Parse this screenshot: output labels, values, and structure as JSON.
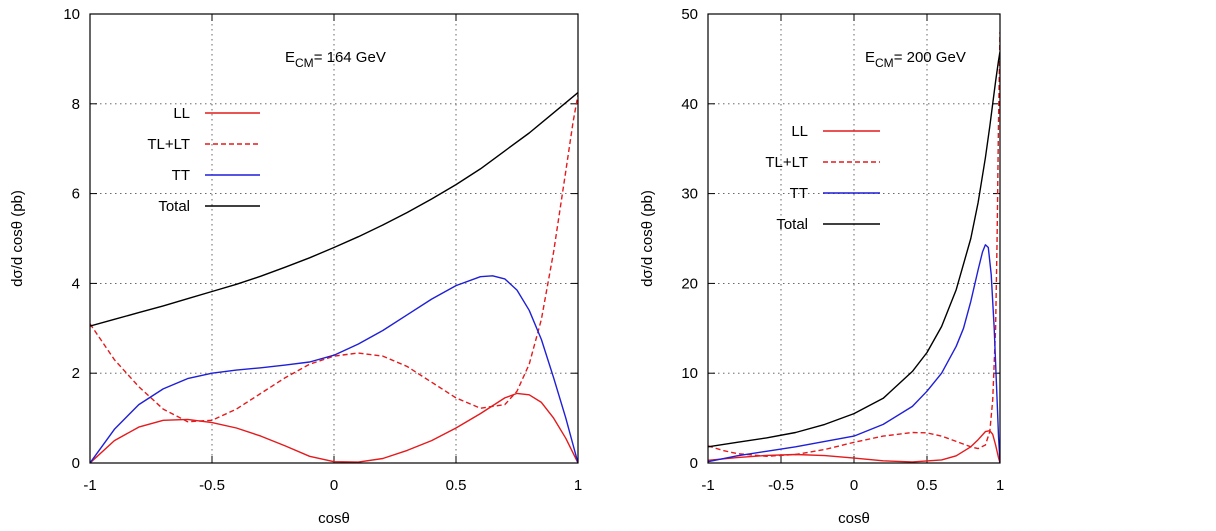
{
  "chart_data": [
    {
      "type": "line",
      "annotation": {
        "main": "E",
        "sub": "CM",
        "rest": "= 164 GeV"
      },
      "xlabel": "cosθ",
      "ylabel": "dσ/d cosθ (pb)",
      "xlim": [
        -1,
        1
      ],
      "ylim": [
        0,
        10
      ],
      "xticks": [
        -1,
        -0.5,
        0,
        0.5,
        1
      ],
      "xtick_labels": [
        "-1",
        "-0.5",
        "0",
        "0.5",
        "1"
      ],
      "yticks": [
        0,
        2,
        4,
        6,
        8,
        10
      ],
      "ytick_labels": [
        "0",
        "2",
        "4",
        "6",
        "8",
        "10"
      ],
      "grid": true,
      "legend_position": "upper-left",
      "series": [
        {
          "name": "LL",
          "color": "#e41a1c",
          "dash": "solid",
          "x": [
            -1,
            -0.9,
            -0.8,
            -0.7,
            -0.6,
            -0.5,
            -0.4,
            -0.3,
            -0.2,
            -0.1,
            0,
            0.1,
            0.2,
            0.3,
            0.4,
            0.5,
            0.6,
            0.7,
            0.75,
            0.8,
            0.85,
            0.9,
            0.95,
            1
          ],
          "y": [
            0,
            0.5,
            0.8,
            0.95,
            0.97,
            0.9,
            0.78,
            0.6,
            0.38,
            0.15,
            0.03,
            0.02,
            0.1,
            0.28,
            0.5,
            0.78,
            1.1,
            1.45,
            1.55,
            1.52,
            1.35,
            1.0,
            0.55,
            0
          ]
        },
        {
          "name": "TL+LT",
          "color": "#e41a1c",
          "dash": "dashed",
          "x": [
            -1,
            -0.9,
            -0.8,
            -0.7,
            -0.6,
            -0.5,
            -0.4,
            -0.3,
            -0.2,
            -0.1,
            0,
            0.1,
            0.2,
            0.3,
            0.4,
            0.5,
            0.6,
            0.7,
            0.75,
            0.8,
            0.85,
            0.9,
            0.95,
            0.98,
            1
          ],
          "y": [
            3.1,
            2.3,
            1.7,
            1.2,
            0.92,
            0.95,
            1.2,
            1.55,
            1.9,
            2.2,
            2.38,
            2.45,
            2.38,
            2.15,
            1.8,
            1.45,
            1.22,
            1.3,
            1.6,
            2.2,
            3.2,
            4.7,
            6.5,
            7.6,
            8.2
          ]
        },
        {
          "name": "TT",
          "color": "#1f1fd8",
          "dash": "solid",
          "x": [
            -1,
            -0.9,
            -0.8,
            -0.7,
            -0.6,
            -0.5,
            -0.4,
            -0.3,
            -0.2,
            -0.1,
            0,
            0.1,
            0.2,
            0.3,
            0.4,
            0.5,
            0.6,
            0.65,
            0.7,
            0.75,
            0.8,
            0.85,
            0.9,
            0.95,
            1
          ],
          "y": [
            0,
            0.75,
            1.3,
            1.65,
            1.88,
            2.0,
            2.07,
            2.12,
            2.18,
            2.25,
            2.4,
            2.65,
            2.95,
            3.3,
            3.65,
            3.95,
            4.15,
            4.17,
            4.1,
            3.85,
            3.4,
            2.75,
            1.9,
            1.0,
            0
          ]
        },
        {
          "name": "Total",
          "color": "#000000",
          "dash": "solid",
          "x": [
            -1,
            -0.9,
            -0.8,
            -0.7,
            -0.6,
            -0.5,
            -0.4,
            -0.3,
            -0.2,
            -0.1,
            0,
            0.1,
            0.2,
            0.3,
            0.4,
            0.5,
            0.6,
            0.7,
            0.8,
            0.9,
            1
          ],
          "y": [
            3.05,
            3.2,
            3.35,
            3.5,
            3.66,
            3.82,
            3.98,
            4.16,
            4.36,
            4.57,
            4.8,
            5.04,
            5.3,
            5.58,
            5.88,
            6.2,
            6.55,
            6.95,
            7.35,
            7.8,
            8.25
          ]
        }
      ]
    },
    {
      "type": "line",
      "annotation": {
        "main": "E",
        "sub": "CM",
        "rest": "= 200 GeV"
      },
      "xlabel": "cosθ",
      "ylabel": "dσ/d cosθ (pb)",
      "xlim": [
        -1,
        1
      ],
      "ylim": [
        0,
        50
      ],
      "xticks": [
        -1,
        -0.5,
        0,
        0.5,
        1
      ],
      "xtick_labels": [
        "-1",
        "-0.5",
        "0",
        "0.5",
        "1"
      ],
      "yticks": [
        0,
        10,
        20,
        30,
        40,
        50
      ],
      "ytick_labels": [
        "0",
        "10",
        "20",
        "30",
        "40",
        "50"
      ],
      "grid": true,
      "legend_position": "upper-left",
      "series": [
        {
          "name": "LL",
          "color": "#e41a1c",
          "dash": "solid",
          "x": [
            -1,
            -0.8,
            -0.6,
            -0.4,
            -0.2,
            0,
            0.2,
            0.4,
            0.6,
            0.7,
            0.8,
            0.85,
            0.9,
            0.93,
            0.95,
            0.97,
            0.99,
            1
          ],
          "y": [
            0.3,
            0.6,
            0.85,
            0.95,
            0.82,
            0.55,
            0.25,
            0.12,
            0.35,
            0.8,
            1.8,
            2.6,
            3.5,
            3.6,
            3.2,
            2.0,
            0.6,
            0
          ]
        },
        {
          "name": "TL+LT",
          "color": "#e41a1c",
          "dash": "dashed",
          "x": [
            -1,
            -0.9,
            -0.8,
            -0.6,
            -0.4,
            -0.2,
            0,
            0.2,
            0.4,
            0.5,
            0.6,
            0.7,
            0.8,
            0.85,
            0.9,
            0.93,
            0.95,
            0.97,
            0.98,
            0.99,
            1
          ],
          "y": [
            1.9,
            1.4,
            1.05,
            0.75,
            0.95,
            1.5,
            2.3,
            3.0,
            3.4,
            3.35,
            3.0,
            2.4,
            1.8,
            1.6,
            2.0,
            3.5,
            7,
            15,
            25,
            38,
            48
          ]
        },
        {
          "name": "TT",
          "color": "#1f1fd8",
          "dash": "solid",
          "x": [
            -1,
            -0.8,
            -0.6,
            -0.4,
            -0.2,
            0,
            0.2,
            0.4,
            0.5,
            0.6,
            0.7,
            0.75,
            0.8,
            0.85,
            0.88,
            0.9,
            0.92,
            0.94,
            0.96,
            0.98,
            0.99,
            1
          ],
          "y": [
            0.15,
            0.8,
            1.3,
            1.8,
            2.4,
            3.0,
            4.3,
            6.3,
            8.0,
            10.0,
            13.0,
            15.0,
            18.0,
            21.5,
            23.5,
            24.3,
            24.0,
            21.0,
            15.0,
            7.0,
            3.0,
            0
          ]
        },
        {
          "name": "Total",
          "color": "#000000",
          "dash": "solid",
          "x": [
            -1,
            -0.8,
            -0.6,
            -0.4,
            -0.2,
            0,
            0.2,
            0.4,
            0.5,
            0.6,
            0.7,
            0.8,
            0.85,
            0.9,
            0.93,
            0.95,
            0.97,
            0.99,
            1
          ],
          "y": [
            1.8,
            2.3,
            2.8,
            3.4,
            4.3,
            5.5,
            7.2,
            10.2,
            12.3,
            15.2,
            19.3,
            25.0,
            29.0,
            34.0,
            37.5,
            40.0,
            42.5,
            44.8,
            45.8
          ]
        }
      ]
    }
  ]
}
